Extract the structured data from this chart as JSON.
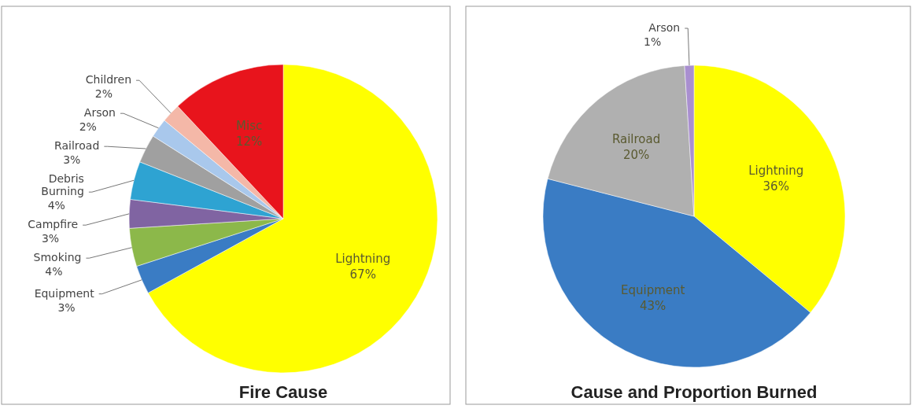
{
  "chart_data": [
    {
      "type": "pie",
      "title": "Fire Cause",
      "categories": [
        "Lightning",
        "Equipment",
        "Smoking",
        "Campfire",
        "Debris Burning",
        "Railroad",
        "Arson",
        "Children",
        "Misc"
      ],
      "values": [
        67,
        3,
        4,
        3,
        4,
        3,
        2,
        2,
        12
      ],
      "value_labels": [
        "67%",
        "3%",
        "4%",
        "3%",
        "4%",
        "3%",
        "2%",
        "2%",
        "12%"
      ],
      "colors": [
        "#ffff00",
        "#3a7cc4",
        "#8cb84a",
        "#8064a2",
        "#2ea3d2",
        "#a0a0a0",
        "#a9c8ec",
        "#f4b8a8",
        "#e8141c"
      ]
    },
    {
      "type": "pie",
      "title": "Cause and Proportion Burned",
      "categories": [
        "Lightning",
        "Equipment",
        "Railroad",
        "Arson"
      ],
      "values": [
        36,
        43,
        20,
        1
      ],
      "value_labels": [
        "36%",
        "43%",
        "20%",
        "1%"
      ],
      "colors": [
        "#ffff00",
        "#3a7cc4",
        "#b0b0b0",
        "#a98fd0"
      ]
    }
  ]
}
